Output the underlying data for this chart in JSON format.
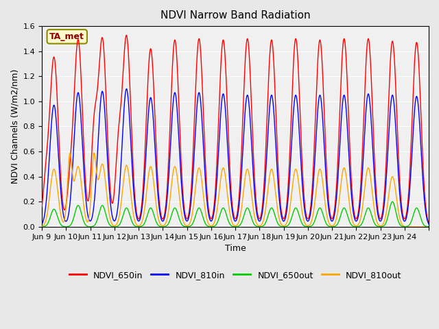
{
  "title": "NDVI Narrow Band Radiation",
  "ylabel": "NDVI Channels (W/m2/nm)",
  "xlabel": "Time",
  "annotation": "TA_met",
  "ylim": [
    0.0,
    1.6
  ],
  "xlim": [
    8,
    24
  ],
  "xtick_positions": [
    8,
    9,
    10,
    11,
    12,
    13,
    14,
    15,
    16,
    17,
    18,
    19,
    20,
    21,
    22,
    23,
    24
  ],
  "xtick_labels": [
    "Jun 9",
    "Jun 10",
    "Jun 11",
    "Jun 12",
    "Jun 13",
    "Jun 14",
    "Jun 15",
    "Jun 16",
    "Jun 17",
    "Jun 18",
    "Jun 19",
    "Jun 20",
    "Jun 21",
    "Jun 22",
    "Jun 23",
    "Jun 24",
    ""
  ],
  "series": {
    "NDVI_650in": {
      "color": "#ff0000",
      "peak_variation": [
        1.35,
        1.49,
        1.5,
        1.52,
        1.42,
        1.49,
        1.5,
        1.49,
        1.5,
        1.49,
        1.5,
        1.49,
        1.5,
        1.5,
        1.48,
        1.47
      ],
      "secondary_peak_variation": [
        0.28,
        0.25,
        0.64,
        0.5,
        0.0,
        0.0,
        0.0,
        0.0,
        0.0,
        0.0,
        0.0,
        0.0,
        0.0,
        0.0,
        0.0,
        0.0
      ]
    },
    "NDVI_810in": {
      "color": "#0000ff",
      "peak_variation": [
        0.97,
        1.07,
        1.08,
        1.1,
        1.03,
        1.07,
        1.07,
        1.06,
        1.05,
        1.05,
        1.05,
        1.05,
        1.05,
        1.06,
        1.05,
        1.04
      ],
      "secondary_peak_variation": [
        0.0,
        0.0,
        0.0,
        0.0,
        0.0,
        0.0,
        0.0,
        0.0,
        0.0,
        0.0,
        0.0,
        0.0,
        0.0,
        0.0,
        0.0,
        0.0
      ]
    },
    "NDVI_650out": {
      "color": "#00cc00",
      "peak_variation": [
        0.14,
        0.17,
        0.17,
        0.15,
        0.15,
        0.15,
        0.15,
        0.15,
        0.15,
        0.15,
        0.15,
        0.15,
        0.15,
        0.15,
        0.2,
        0.15
      ],
      "secondary_peak_variation": [
        0.0,
        0.0,
        0.0,
        0.0,
        0.0,
        0.0,
        0.0,
        0.0,
        0.0,
        0.0,
        0.0,
        0.0,
        0.0,
        0.0,
        0.0,
        0.0
      ]
    },
    "NDVI_810out": {
      "color": "#ffa500",
      "peak_variation": [
        0.46,
        0.48,
        0.5,
        0.49,
        0.48,
        0.48,
        0.47,
        0.47,
        0.46,
        0.46,
        0.46,
        0.46,
        0.47,
        0.47,
        0.4,
        0.0
      ],
      "secondary_peak_variation": [
        0.0,
        0.27,
        0.27,
        0.0,
        0.0,
        0.0,
        0.0,
        0.0,
        0.0,
        0.0,
        0.0,
        0.0,
        0.0,
        0.0,
        0.0,
        0.0
      ]
    }
  },
  "legend_entries": [
    "NDVI_650in",
    "NDVI_810in",
    "NDVI_650out",
    "NDVI_810out"
  ],
  "legend_colors": [
    "#ff0000",
    "#0000ff",
    "#00cc00",
    "#ffa500"
  ],
  "bg_color": "#e8e8e8",
  "plot_bg_color": "#f0f0f0",
  "yticks": [
    0.0,
    0.2,
    0.4,
    0.6,
    0.8,
    1.0,
    1.2,
    1.4,
    1.6
  ]
}
